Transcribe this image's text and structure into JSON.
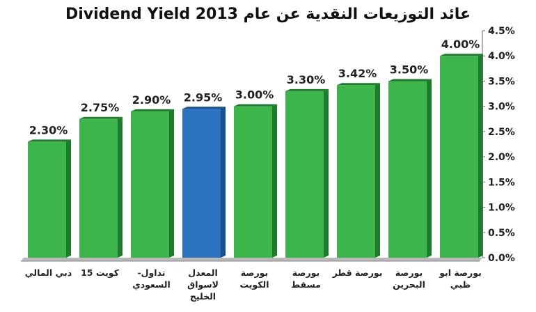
{
  "chart_data": {
    "type": "bar",
    "title": "Dividend Yield 2013 عائد التوزيعات النقدية عن عام",
    "categories": [
      "دبي المالي",
      "كويت 15",
      "تداول- السعودي",
      "المعدل لاسواق الخليج",
      "بورصة الكويت",
      "بورصة مسقط",
      "بورصة قطر",
      "بورصة البحرين",
      "بورصة ابو ظبي"
    ],
    "category_lines": [
      [
        "دبي المالي"
      ],
      [
        "كويت 15"
      ],
      [
        "تداول-",
        "السعودي"
      ],
      [
        "المعدل",
        "لاسواق",
        "الخليج"
      ],
      [
        "بورصة",
        "الكويت"
      ],
      [
        "بورصة",
        "مسقط"
      ],
      [
        "بورصة قطر"
      ],
      [
        "بورصة",
        "البحرين"
      ],
      [
        "بورصة ابو",
        "ظبي"
      ]
    ],
    "values": [
      2.3,
      2.75,
      2.9,
      2.95,
      3.0,
      3.3,
      3.42,
      3.5,
      4.0
    ],
    "value_labels": [
      "2.30%",
      "2.75%",
      "2.90%",
      "2.95%",
      "3.00%",
      "3.30%",
      "3.42%",
      "3.50%",
      "4.00%"
    ],
    "ylim": [
      0,
      4.5
    ],
    "yticks": [
      0.0,
      0.5,
      1.0,
      1.5,
      2.0,
      2.5,
      3.0,
      3.5,
      4.0,
      4.5
    ],
    "ytick_labels": [
      "0.0%",
      "0.5%",
      "1.0%",
      "1.5%",
      "2.0%",
      "2.5%",
      "3.0%",
      "3.5%",
      "4.0%",
      "4.5%"
    ],
    "y_axis_side": "right",
    "grid": false,
    "legend": false,
    "colors": {
      "bar": "#3cb54a",
      "bar_side": "#1e7a2c",
      "highlight_bar": "#2a72c0",
      "highlight_side": "#184f8c",
      "floor": "#b9b9b9"
    },
    "highlight_index": 3
  }
}
